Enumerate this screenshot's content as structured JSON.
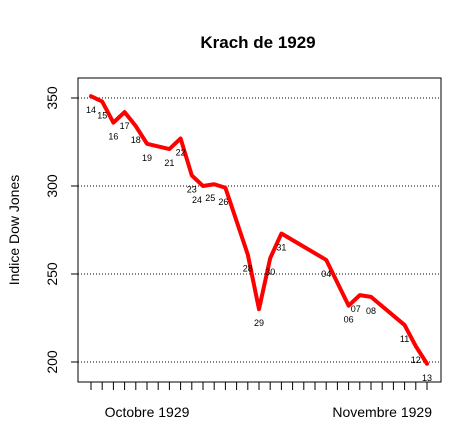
{
  "chart_data": {
    "type": "line",
    "title": "Krach de 1929",
    "ylabel": "Indice Dow Jones",
    "xlabel": "",
    "ylim": [
      190,
      358
    ],
    "yticks": [
      200,
      250,
      300,
      350
    ],
    "grid": "horizontal-dotted",
    "line_color": "#ff0000",
    "x_tick_count": 31,
    "month_labels": [
      {
        "label": "Octobre 1929",
        "tick_index": 5
      },
      {
        "label": "Novembre 1929",
        "tick_index": 26
      }
    ],
    "series": [
      {
        "points": [
          {
            "i": 0,
            "day": "14",
            "value": 351
          },
          {
            "i": 1,
            "day": "15",
            "value": 348
          },
          {
            "i": 2,
            "day": "16",
            "value": 336
          },
          {
            "i": 3,
            "day": "17",
            "value": 342
          },
          {
            "i": 4,
            "day": "18",
            "value": 334
          },
          {
            "i": 5,
            "day": "19",
            "value": 324
          },
          {
            "i": 7,
            "day": "21",
            "value": 321
          },
          {
            "i": 8,
            "day": "22",
            "value": 327
          },
          {
            "i": 9,
            "day": "23",
            "value": 306
          },
          {
            "i": 10,
            "day": "24",
            "value": 300
          },
          {
            "i": 11,
            "day": "25",
            "value": 301
          },
          {
            "i": 12,
            "day": "26",
            "value": 299
          },
          {
            "i": 14,
            "day": "28",
            "value": 261
          },
          {
            "i": 15,
            "day": "29",
            "value": 230
          },
          {
            "i": 16,
            "day": "30",
            "value": 259
          },
          {
            "i": 17,
            "day": "31",
            "value": 273
          },
          {
            "i": 21,
            "day": "04",
            "value": 258
          },
          {
            "i": 23,
            "day": "06",
            "value": 232
          },
          {
            "i": 24,
            "day": "07",
            "value": 238
          },
          {
            "i": 25,
            "day": "08",
            "value": 237
          },
          {
            "i": 28,
            "day": "11",
            "value": 221
          },
          {
            "i": 29,
            "day": "12",
            "value": 209
          },
          {
            "i": 30,
            "day": "13",
            "value": 199
          }
        ]
      }
    ]
  }
}
